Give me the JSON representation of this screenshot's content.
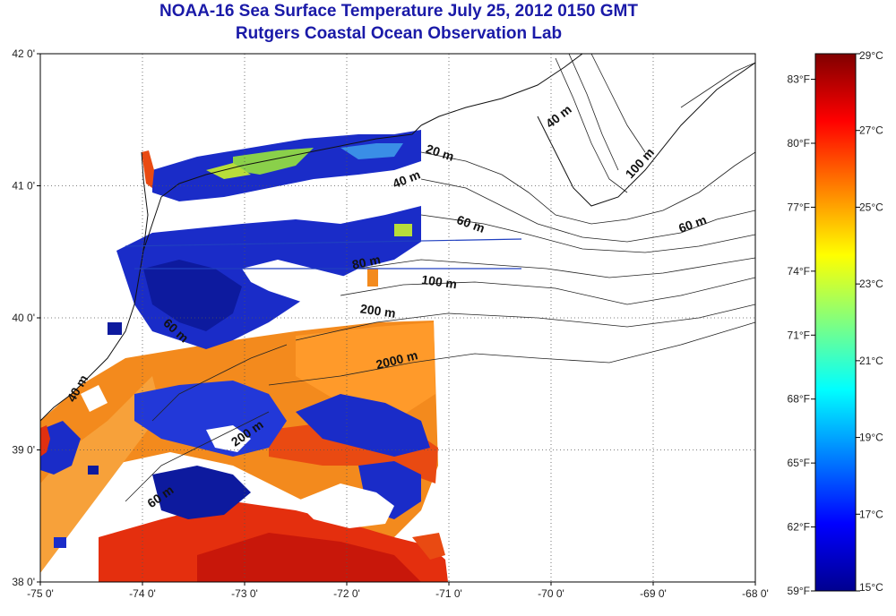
{
  "title": "NOAA-16 Sea Surface Temperature July 25, 2012 0150 GMT",
  "subtitle": "Rutgers Coastal Ocean Observation Lab",
  "axes": {
    "lat_labels": [
      {
        "value": 42,
        "label": "42 0'"
      },
      {
        "value": 41,
        "label": "41 0'"
      },
      {
        "value": 40,
        "label": "40 0'"
      },
      {
        "value": 39,
        "label": "39 0'"
      },
      {
        "value": 38,
        "label": "38 0'"
      }
    ],
    "lon_labels": [
      {
        "value": -75,
        "label": "-75 0'"
      },
      {
        "value": -74,
        "label": "-74 0'"
      },
      {
        "value": -73,
        "label": "-73 0'"
      },
      {
        "value": -72,
        "label": "-72 0'"
      },
      {
        "value": -71,
        "label": "-71 0'"
      },
      {
        "value": -70,
        "label": "-70 0'"
      },
      {
        "value": -69,
        "label": "-69 0'"
      },
      {
        "value": -68,
        "label": "-68 0'"
      }
    ],
    "lat_range": [
      38,
      42
    ],
    "lon_range": [
      -75,
      -68
    ],
    "grid": "dotted"
  },
  "colorbar": {
    "celsius_range": [
      15,
      29
    ],
    "celsius_labels": [
      {
        "value": 29,
        "label": "29°C"
      },
      {
        "value": 27,
        "label": "27°C"
      },
      {
        "value": 25,
        "label": "25°C"
      },
      {
        "value": 23,
        "label": "23°C"
      },
      {
        "value": 21,
        "label": "21°C"
      },
      {
        "value": 19,
        "label": "19°C"
      },
      {
        "value": 17,
        "label": "17°C"
      },
      {
        "value": 15,
        "label": "15°C"
      }
    ],
    "fahrenheit_labels": [
      {
        "value": 83,
        "label": "83°F"
      },
      {
        "value": 80,
        "label": "80°F"
      },
      {
        "value": 77,
        "label": "77°F"
      },
      {
        "value": 74,
        "label": "74°F"
      },
      {
        "value": 71,
        "label": "71°F"
      },
      {
        "value": 68,
        "label": "68°F"
      },
      {
        "value": 65,
        "label": "65°F"
      },
      {
        "value": 62,
        "label": "62°F"
      },
      {
        "value": 59,
        "label": "59°F"
      }
    ],
    "colors": [
      "#00008f",
      "#0000ff",
      "#0080ff",
      "#00ffff",
      "#80ff80",
      "#ffff00",
      "#ff8000",
      "#ff0000",
      "#800000"
    ]
  },
  "contour_labels": [
    {
      "label": "40 m",
      "lon": -69.9,
      "lat": 41.5,
      "angle": -38
    },
    {
      "label": "100 m",
      "lon": -69.1,
      "lat": 41.15,
      "angle": -48
    },
    {
      "label": "20 m",
      "lon": -71.1,
      "lat": 41.22,
      "angle": 18
    },
    {
      "label": "40 m",
      "lon": -71.4,
      "lat": 41.02,
      "angle": -22
    },
    {
      "label": "60 m",
      "lon": -70.8,
      "lat": 40.68,
      "angle": 20
    },
    {
      "label": "60 m",
      "lon": -68.6,
      "lat": 40.68,
      "angle": -20
    },
    {
      "label": "80 m",
      "lon": -71.8,
      "lat": 40.39,
      "angle": -12
    },
    {
      "label": "100 m",
      "lon": -71.1,
      "lat": 40.24,
      "angle": 8
    },
    {
      "label": "200 m",
      "lon": -71.7,
      "lat": 40.02,
      "angle": 8
    },
    {
      "label": "2000 m",
      "lon": -71.5,
      "lat": 39.65,
      "angle": -14
    },
    {
      "label": "60 m",
      "lon": -73.7,
      "lat": 39.88,
      "angle": 42
    },
    {
      "label": "40 m",
      "lon": -74.6,
      "lat": 39.45,
      "angle": -60
    },
    {
      "label": "200 m",
      "lon": -72.95,
      "lat": 39.1,
      "angle": -35
    },
    {
      "label": "60 m",
      "lon": -73.8,
      "lat": 38.62,
      "angle": -35
    }
  ]
}
